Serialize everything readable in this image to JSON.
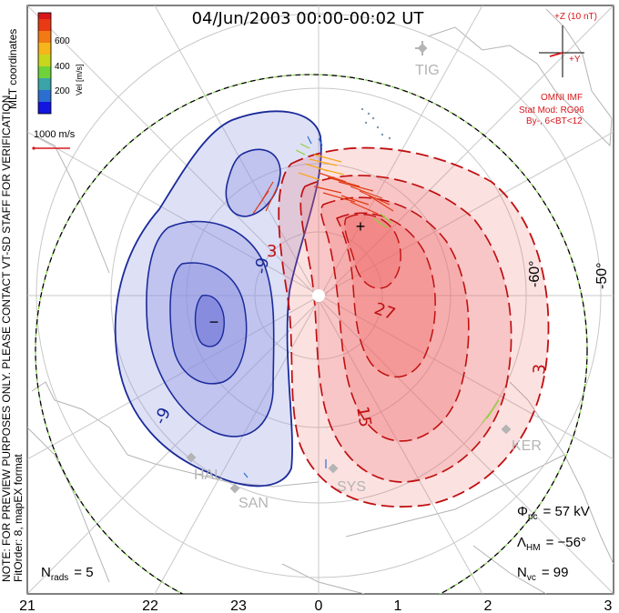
{
  "title": "04/Jun/2003 00:00-00:02 UT",
  "coord_system": "MLT coordinates",
  "colorbar": {
    "label": "Vel [m/s]",
    "ticks": [
      "200",
      "400",
      "600"
    ],
    "colors": [
      "#1515e0",
      "#2a6fd0",
      "#3aa3a8",
      "#6ed23a",
      "#c8d61c",
      "#f6b51a",
      "#f27a14",
      "#e83a14",
      "#d8161a"
    ]
  },
  "velocity_scale": "1000 m/s",
  "imf": {
    "plus_z": "+Z (10 nT)",
    "plus_y": "+Y",
    "label": "OMNI IMF",
    "stat_mod": "Stat Mod: RG96",
    "condition": "By-, 6<BT<12"
  },
  "notes": {
    "preview": "NOTE: FOR PREVIEW PURPOSES ONLY. PLEASE CONTACT VT-SD STAFF FOR VERIFICATION.",
    "fit": "FitOrder: 8, mapEX format"
  },
  "stations": [
    "TIG",
    "KER",
    "SYS",
    "SAN",
    "HAL"
  ],
  "lat_labels": [
    "-60°",
    "-50°"
  ],
  "mlt_labels": [
    "21",
    "22",
    "23",
    "0",
    "1",
    "2",
    "3"
  ],
  "contours": {
    "negative": [
      "-9",
      "-9"
    ],
    "positive": [
      "3",
      "27",
      "15",
      "3"
    ],
    "min_marker": "−",
    "max_marker": "+"
  },
  "stats": {
    "phi_symbol": "Φ",
    "phi_sub": "pc",
    "phi_value": "= 57 kV",
    "lambda_symbol": "Λ",
    "lambda_sub": "HM",
    "lambda_value": "= −56°",
    "n_vc_symbol": "N",
    "n_vc_sub": "vc",
    "n_vc_value": "= 99",
    "n_rads_symbol": "N",
    "n_rads_sub": "rads",
    "n_rads_value": "= 5"
  },
  "colors": {
    "negative_line": "#1a2a9a",
    "negative_fill": "#8a8ee0",
    "positive_line": "#c01010",
    "positive_fill": "#ee6a6a",
    "coast": "#b4b4b4",
    "grid": "#c8c8c8"
  }
}
